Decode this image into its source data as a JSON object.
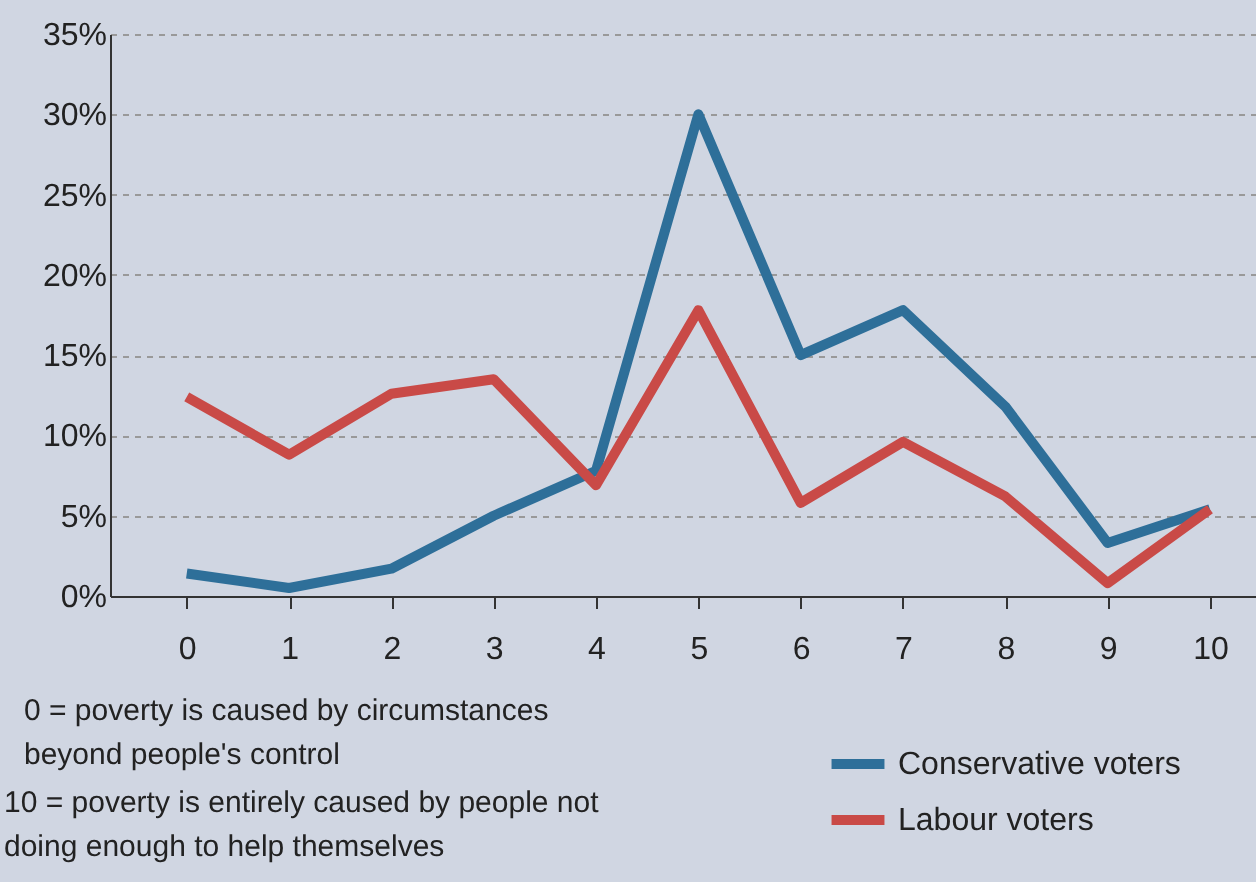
{
  "chart_data": {
    "type": "line",
    "categories": [
      "0",
      "1",
      "2",
      "3",
      "4",
      "5",
      "6",
      "7",
      "8",
      "9",
      "10"
    ],
    "series": [
      {
        "name": "Conservative voters",
        "color": "#2e6f99",
        "values": [
          1.4,
          0.5,
          1.7,
          5.0,
          7.8,
          30.0,
          15.0,
          17.8,
          11.8,
          3.3,
          5.4
        ]
      },
      {
        "name": "Labour voters",
        "color": "#c94a47",
        "values": [
          12.4,
          8.8,
          12.6,
          13.5,
          6.9,
          17.8,
          5.8,
          9.6,
          6.2,
          0.8,
          5.4
        ]
      }
    ],
    "ylim": [
      0,
      35
    ],
    "yticks": [
      {
        "value": 0,
        "label": "0%"
      },
      {
        "value": 5,
        "label": "5%"
      },
      {
        "value": 10,
        "label": "10%"
      },
      {
        "value": 15,
        "label": "15%"
      },
      {
        "value": 20,
        "label": "20%"
      },
      {
        "value": 25,
        "label": "25%"
      },
      {
        "value": 30,
        "label": "30%"
      },
      {
        "value": 35,
        "label": "35%"
      }
    ],
    "grid": "y",
    "legend": "bottom right",
    "marker": "none",
    "line_style": "solid",
    "annotations": [
      "0 = poverty is caused by circumstances\nbeyond people's control",
      "10 = poverty is entirely caused by people not\ndoing enough to help themselves"
    ]
  }
}
